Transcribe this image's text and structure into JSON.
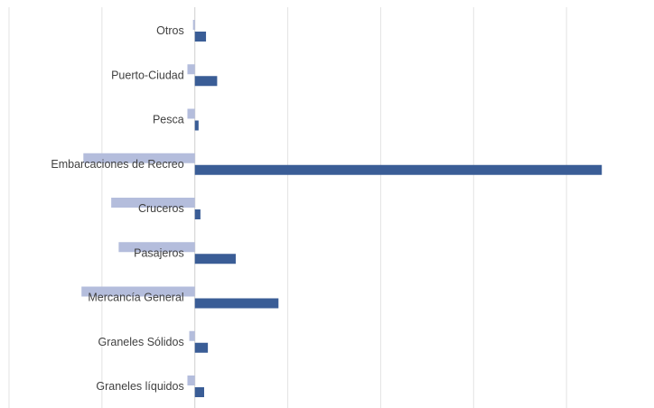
{
  "chart_data": {
    "type": "bar",
    "orientation": "horizontal",
    "title": "",
    "xlabel": "",
    "ylabel": "",
    "grid": true,
    "legend": "none",
    "categories": [
      "Otros",
      "Puerto-Ciudad",
      "Pesca",
      "Embarcaciones de Recreo",
      "Cruceros",
      "Pasajeros",
      "Mercancía General",
      "Graneles Sólidos",
      "Graneles líquidos"
    ],
    "series": [
      {
        "values": [
          -1,
          -4,
          -4,
          -60,
          -45,
          -41,
          -61,
          -3,
          -4
        ],
        "color": "#b4bddc"
      },
      {
        "values": [
          6,
          12,
          2,
          219,
          3,
          22,
          45,
          7,
          5
        ],
        "color": "#3a5d96"
      }
    ],
    "xlim": [
      -100,
      250
    ]
  }
}
